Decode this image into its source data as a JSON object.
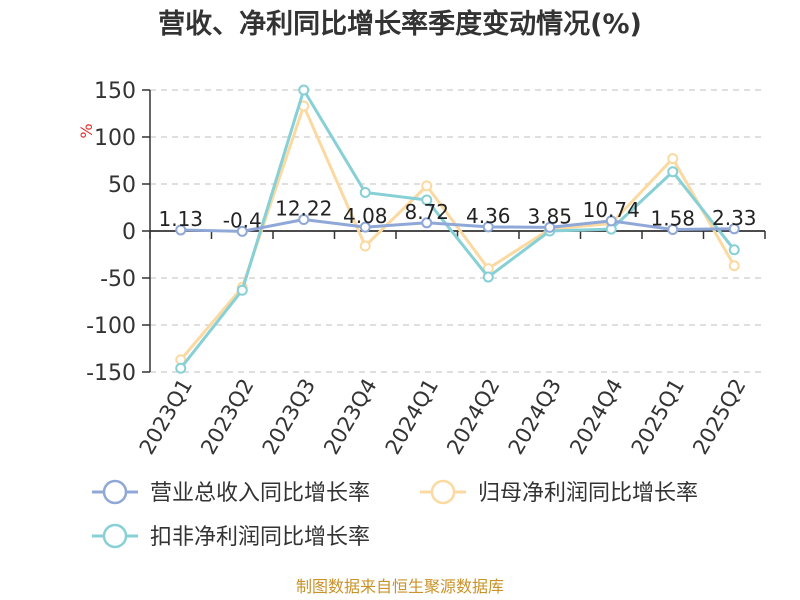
{
  "title": "营收、净利同比增长率季度变动情况(%)",
  "source_note": "制图数据来自恒生聚源数据库",
  "colors": {
    "revenue": "#8fa8d8",
    "net_profit": "#fcd9a0",
    "deducted_profit": "#86d0d6",
    "grid": "#cccccc",
    "axis": "#333333"
  },
  "chart_data": {
    "type": "line",
    "title": "营收、净利同比增长率季度变动情况(%)",
    "ylabel": "%",
    "ylim": [
      -150,
      150
    ],
    "yticks": [
      150,
      100,
      50,
      0,
      -50,
      -100,
      -150
    ],
    "grid": "horizontal dashed",
    "legend_position": "bottom",
    "categories": [
      "2023Q1",
      "2023Q2",
      "2023Q3",
      "2023Q4",
      "2024Q1",
      "2024Q2",
      "2024Q3",
      "2024Q4",
      "2025Q1",
      "2025Q2"
    ],
    "data_labels": [
      "1.13",
      "-0.4",
      "12.22",
      "4.08",
      "8.72",
      "4.36",
      "3.85",
      "10.74",
      "1.58",
      "2.33"
    ],
    "series": [
      {
        "name": "营业总收入同比增长率",
        "color_key": "revenue",
        "values": [
          1.13,
          -0.4,
          12.22,
          4.08,
          8.72,
          4.36,
          3.85,
          10.74,
          1.58,
          2.33
        ]
      },
      {
        "name": "归母净利润同比增长率",
        "color_key": "net_profit",
        "values": [
          -137,
          -60,
          133,
          -16,
          48,
          -40,
          2,
          8,
          77,
          -37
        ]
      },
      {
        "name": "扣非净利润同比增长率",
        "color_key": "deducted_profit",
        "values": [
          -146,
          -63,
          150,
          41,
          33,
          -49,
          0,
          2,
          63,
          -20
        ]
      }
    ]
  }
}
